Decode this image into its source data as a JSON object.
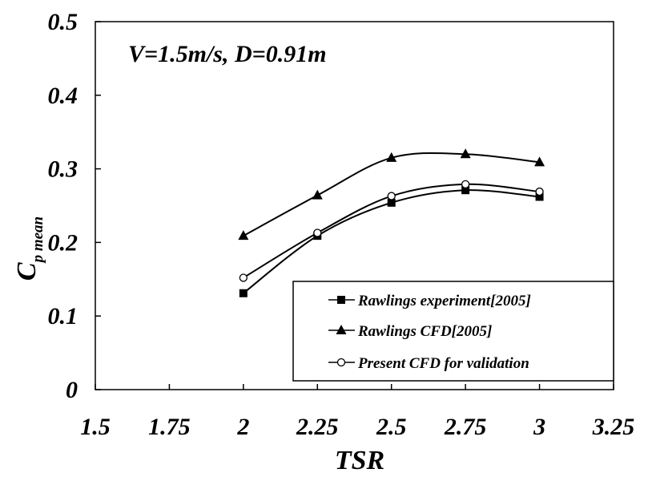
{
  "chart_data": {
    "type": "line",
    "annotation": "V=1.5m/s, D=0.91m",
    "xlabel": "TSR",
    "ylabel_main": "C",
    "ylabel_sub": "p mean",
    "xlim": [
      1.5,
      3.25
    ],
    "ylim": [
      0,
      0.5
    ],
    "x_ticks": [
      "1.5",
      "1.75",
      "2",
      "2.25",
      "2.5",
      "2.75",
      "3",
      "3.25"
    ],
    "y_ticks": [
      "0",
      "0.1",
      "0.2",
      "0.3",
      "0.4",
      "0.5"
    ],
    "grid": false,
    "legend_position": "bottom-right",
    "series": [
      {
        "name": "Rawlings experiment[2005]",
        "marker": "square",
        "x": [
          2,
          2.25,
          2.5,
          2.75,
          3
        ],
        "y": [
          0.131,
          0.209,
          0.254,
          0.271,
          0.262
        ]
      },
      {
        "name": "Rawlings CFD[2005]",
        "marker": "triangle",
        "x": [
          2,
          2.25,
          2.5,
          2.75,
          3
        ],
        "y": [
          0.209,
          0.264,
          0.315,
          0.32,
          0.309
        ]
      },
      {
        "name": "Present CFD for validation",
        "marker": "circle",
        "x": [
          2,
          2.25,
          2.5,
          2.75,
          3
        ],
        "y": [
          0.152,
          0.213,
          0.263,
          0.279,
          0.269
        ]
      }
    ]
  }
}
